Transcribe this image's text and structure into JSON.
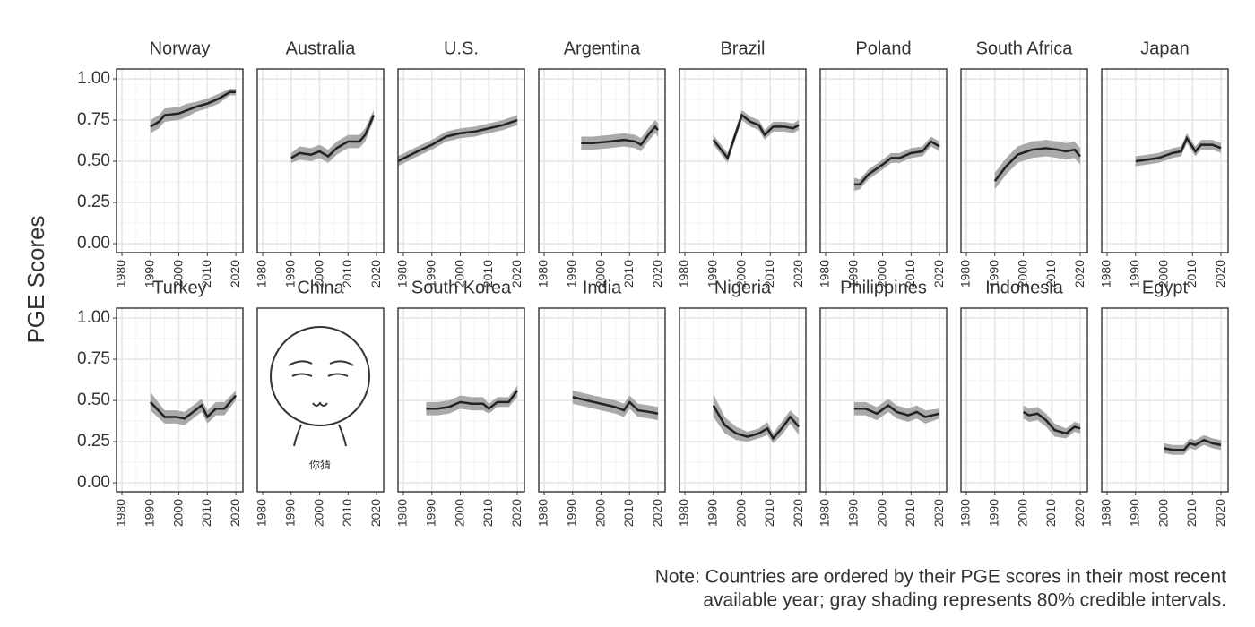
{
  "ylabel": "PGE Scores",
  "note": [
    "Note: Countries are ordered by their PGE scores in their most recent",
    "available year; gray shading represents 80% credible intervals."
  ],
  "xlim": [
    1978.1,
    2022.5
  ],
  "xticks": [
    1980,
    1990,
    2000,
    2010,
    2020
  ],
  "ylim": [
    -0.054,
    1.06
  ],
  "yticks": [
    {
      "value": 0,
      "label": "0.00"
    },
    {
      "value": 0.25,
      "label": "0.25"
    },
    {
      "value": 0.5,
      "label": "0.50"
    },
    {
      "value": 0.75,
      "label": "0.75"
    },
    {
      "value": 1,
      "label": "1.00"
    }
  ],
  "grid": true,
  "line_color": "#222222",
  "band_color": "#a9a9a9",
  "chart_data": [
    {
      "type": "line",
      "title": "Norway",
      "x": [
        1990,
        1993,
        1995,
        2000,
        2003,
        2006,
        2010,
        2014,
        2018,
        2020
      ],
      "values": [
        0.71,
        0.74,
        0.78,
        0.79,
        0.81,
        0.83,
        0.85,
        0.88,
        0.92,
        0.92
      ],
      "lower": [
        0.67,
        0.7,
        0.74,
        0.75,
        0.77,
        0.8,
        0.82,
        0.85,
        0.9,
        0.9
      ],
      "upper": [
        0.75,
        0.78,
        0.82,
        0.83,
        0.85,
        0.86,
        0.88,
        0.91,
        0.94,
        0.94
      ]
    },
    {
      "type": "line",
      "title": "Australia",
      "x": [
        1990,
        1993,
        1997,
        2000,
        2003,
        2006,
        2010,
        2014,
        2016,
        2019
      ],
      "values": [
        0.52,
        0.55,
        0.54,
        0.56,
        0.53,
        0.58,
        0.62,
        0.62,
        0.66,
        0.78
      ],
      "lower": [
        0.49,
        0.51,
        0.5,
        0.52,
        0.49,
        0.54,
        0.58,
        0.58,
        0.62,
        0.75
      ],
      "upper": [
        0.55,
        0.59,
        0.58,
        0.6,
        0.57,
        0.62,
        0.66,
        0.66,
        0.7,
        0.81
      ]
    },
    {
      "type": "line",
      "title": "U.S.",
      "x": [
        1978,
        1985,
        1990,
        1995,
        2000,
        2005,
        2010,
        2015,
        2020
      ],
      "values": [
        0.5,
        0.56,
        0.6,
        0.65,
        0.67,
        0.68,
        0.7,
        0.72,
        0.75
      ],
      "lower": [
        0.47,
        0.53,
        0.57,
        0.62,
        0.64,
        0.65,
        0.67,
        0.69,
        0.72
      ],
      "upper": [
        0.53,
        0.59,
        0.63,
        0.68,
        0.7,
        0.71,
        0.73,
        0.75,
        0.78
      ]
    },
    {
      "type": "line",
      "title": "Argentina",
      "x": [
        1993,
        1997,
        2003,
        2008,
        2012,
        2014,
        2017,
        2019,
        2020
      ],
      "values": [
        0.61,
        0.61,
        0.62,
        0.63,
        0.62,
        0.6,
        0.67,
        0.71,
        0.69
      ],
      "lower": [
        0.57,
        0.57,
        0.58,
        0.59,
        0.58,
        0.56,
        0.63,
        0.67,
        0.65
      ],
      "upper": [
        0.65,
        0.65,
        0.66,
        0.67,
        0.66,
        0.64,
        0.71,
        0.75,
        0.73
      ]
    },
    {
      "type": "line",
      "title": "Brazil",
      "x": [
        1990,
        1995,
        2000,
        2003,
        2006,
        2008,
        2011,
        2015,
        2018,
        2020
      ],
      "values": [
        0.63,
        0.52,
        0.78,
        0.74,
        0.72,
        0.66,
        0.71,
        0.71,
        0.7,
        0.72
      ],
      "lower": [
        0.6,
        0.49,
        0.75,
        0.71,
        0.69,
        0.63,
        0.68,
        0.68,
        0.67,
        0.69
      ],
      "upper": [
        0.66,
        0.55,
        0.81,
        0.77,
        0.75,
        0.69,
        0.74,
        0.74,
        0.73,
        0.75
      ]
    },
    {
      "type": "line",
      "title": "Poland",
      "x": [
        1990,
        1992,
        1995,
        2000,
        2003,
        2006,
        2010,
        2014,
        2017,
        2020
      ],
      "values": [
        0.36,
        0.36,
        0.42,
        0.48,
        0.52,
        0.52,
        0.55,
        0.56,
        0.62,
        0.59
      ],
      "lower": [
        0.32,
        0.33,
        0.39,
        0.45,
        0.49,
        0.49,
        0.52,
        0.53,
        0.59,
        0.56
      ],
      "upper": [
        0.4,
        0.39,
        0.45,
        0.51,
        0.55,
        0.55,
        0.58,
        0.59,
        0.65,
        0.62
      ]
    },
    {
      "type": "line",
      "title": "South Africa",
      "x": [
        1990,
        1994,
        1998,
        2003,
        2008,
        2012,
        2015,
        2018,
        2020
      ],
      "values": [
        0.38,
        0.47,
        0.54,
        0.57,
        0.58,
        0.57,
        0.56,
        0.57,
        0.53
      ],
      "lower": [
        0.33,
        0.42,
        0.49,
        0.52,
        0.53,
        0.52,
        0.51,
        0.52,
        0.48
      ],
      "upper": [
        0.43,
        0.52,
        0.59,
        0.62,
        0.63,
        0.62,
        0.61,
        0.62,
        0.58
      ]
    },
    {
      "type": "line",
      "title": "Japan",
      "x": [
        1990,
        1994,
        1998,
        2003,
        2006,
        2008,
        2011,
        2013,
        2017,
        2020
      ],
      "values": [
        0.5,
        0.51,
        0.52,
        0.55,
        0.56,
        0.64,
        0.56,
        0.6,
        0.6,
        0.58
      ],
      "lower": [
        0.47,
        0.48,
        0.49,
        0.52,
        0.53,
        0.61,
        0.53,
        0.57,
        0.57,
        0.55
      ],
      "upper": [
        0.53,
        0.54,
        0.55,
        0.58,
        0.59,
        0.67,
        0.59,
        0.63,
        0.63,
        0.61
      ]
    },
    {
      "type": "line",
      "title": "Turkey",
      "x": [
        1990,
        1995,
        1999,
        2002,
        2005,
        2008,
        2010,
        2013,
        2016,
        2020
      ],
      "values": [
        0.49,
        0.4,
        0.4,
        0.39,
        0.43,
        0.47,
        0.4,
        0.45,
        0.45,
        0.53
      ],
      "lower": [
        0.44,
        0.36,
        0.36,
        0.35,
        0.39,
        0.43,
        0.36,
        0.41,
        0.41,
        0.5
      ],
      "upper": [
        0.55,
        0.44,
        0.44,
        0.43,
        0.47,
        0.51,
        0.44,
        0.49,
        0.49,
        0.56
      ]
    },
    {
      "type": "image",
      "title": "China",
      "annotation": "你猜"
    },
    {
      "type": "line",
      "title": "South Korea",
      "x": [
        1988,
        1992,
        1996,
        2000,
        2004,
        2008,
        2010,
        2013,
        2017,
        2020
      ],
      "values": [
        0.45,
        0.45,
        0.46,
        0.49,
        0.48,
        0.48,
        0.45,
        0.49,
        0.49,
        0.56
      ],
      "lower": [
        0.41,
        0.41,
        0.42,
        0.45,
        0.44,
        0.44,
        0.42,
        0.46,
        0.46,
        0.52
      ],
      "upper": [
        0.49,
        0.49,
        0.5,
        0.53,
        0.52,
        0.52,
        0.48,
        0.52,
        0.52,
        0.59
      ]
    },
    {
      "type": "line",
      "title": "India",
      "x": [
        1990,
        1995,
        2000,
        2005,
        2008,
        2010,
        2013,
        2017,
        2020
      ],
      "values": [
        0.52,
        0.5,
        0.48,
        0.46,
        0.44,
        0.49,
        0.44,
        0.43,
        0.42
      ],
      "lower": [
        0.48,
        0.46,
        0.44,
        0.42,
        0.4,
        0.45,
        0.4,
        0.39,
        0.38
      ],
      "upper": [
        0.56,
        0.54,
        0.52,
        0.5,
        0.48,
        0.53,
        0.48,
        0.47,
        0.46
      ]
    },
    {
      "type": "line",
      "title": "Nigeria",
      "x": [
        1990,
        1994,
        1998,
        2002,
        2006,
        2009,
        2011,
        2014,
        2017,
        2020
      ],
      "values": [
        0.47,
        0.35,
        0.3,
        0.28,
        0.3,
        0.33,
        0.27,
        0.33,
        0.4,
        0.34
      ],
      "lower": [
        0.4,
        0.3,
        0.26,
        0.25,
        0.27,
        0.29,
        0.24,
        0.29,
        0.36,
        0.29
      ],
      "upper": [
        0.54,
        0.4,
        0.34,
        0.31,
        0.33,
        0.37,
        0.3,
        0.37,
        0.44,
        0.39
      ]
    },
    {
      "type": "line",
      "title": "Philippines",
      "x": [
        1990,
        1994,
        1998,
        2002,
        2005,
        2009,
        2012,
        2015,
        2020
      ],
      "values": [
        0.45,
        0.45,
        0.42,
        0.47,
        0.43,
        0.41,
        0.43,
        0.4,
        0.42
      ],
      "lower": [
        0.41,
        0.41,
        0.38,
        0.43,
        0.39,
        0.37,
        0.39,
        0.36,
        0.39
      ],
      "upper": [
        0.49,
        0.49,
        0.46,
        0.51,
        0.47,
        0.45,
        0.47,
        0.44,
        0.45
      ]
    },
    {
      "type": "line",
      "title": "Indonesia",
      "x": [
        2000,
        2002,
        2005,
        2008,
        2011,
        2015,
        2018,
        2020
      ],
      "values": [
        0.43,
        0.41,
        0.42,
        0.38,
        0.32,
        0.3,
        0.34,
        0.33
      ],
      "lower": [
        0.39,
        0.37,
        0.38,
        0.34,
        0.28,
        0.27,
        0.31,
        0.3
      ],
      "upper": [
        0.47,
        0.45,
        0.46,
        0.42,
        0.36,
        0.33,
        0.37,
        0.36
      ]
    },
    {
      "type": "line",
      "title": "Egypt",
      "x": [
        2000,
        2003,
        2007,
        2009,
        2011,
        2014,
        2017,
        2020
      ],
      "values": [
        0.21,
        0.2,
        0.2,
        0.24,
        0.23,
        0.26,
        0.24,
        0.23
      ],
      "lower": [
        0.18,
        0.17,
        0.17,
        0.21,
        0.2,
        0.23,
        0.21,
        0.2
      ],
      "upper": [
        0.24,
        0.23,
        0.23,
        0.27,
        0.26,
        0.29,
        0.27,
        0.26
      ]
    }
  ]
}
